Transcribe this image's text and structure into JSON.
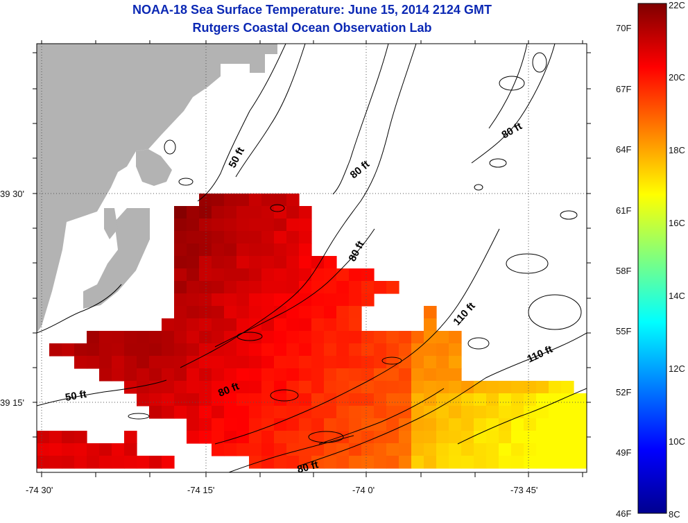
{
  "title_line1": "NOAA-18 Sea Surface Temperature:  June 15, 2014 2124 GMT",
  "title_line2": "Rutgers Coastal Ocean Observation Lab",
  "colors": {
    "title": "#0b28b4",
    "land": "#b3b3b3",
    "no_data": "#ffffff",
    "contour": "#000000"
  },
  "colorbar": {
    "fahrenheit_labels": [
      "70F",
      "67F",
      "64F",
      "61F",
      "58F",
      "55F",
      "52F",
      "49F",
      "46F"
    ],
    "celsius_labels": [
      "22C",
      "20C",
      "18C",
      "16C",
      "14C",
      "12C",
      "10C",
      "8C"
    ],
    "range_c": [
      8,
      22
    ],
    "colormap": "jet"
  },
  "axes": {
    "x_tick_labels": [
      "-74 30'",
      "-74 15'",
      "-74 0'",
      "-73 45'"
    ],
    "y_tick_labels": [
      "39 30'",
      "39 15'"
    ],
    "grid": "dotted"
  },
  "depth_contour_labels": [
    "50 ft",
    "50 ft",
    "80 ft",
    "80 ft",
    "80 ft",
    "80 ft",
    "80 ft",
    "110 ft",
    "110 ft"
  ]
}
